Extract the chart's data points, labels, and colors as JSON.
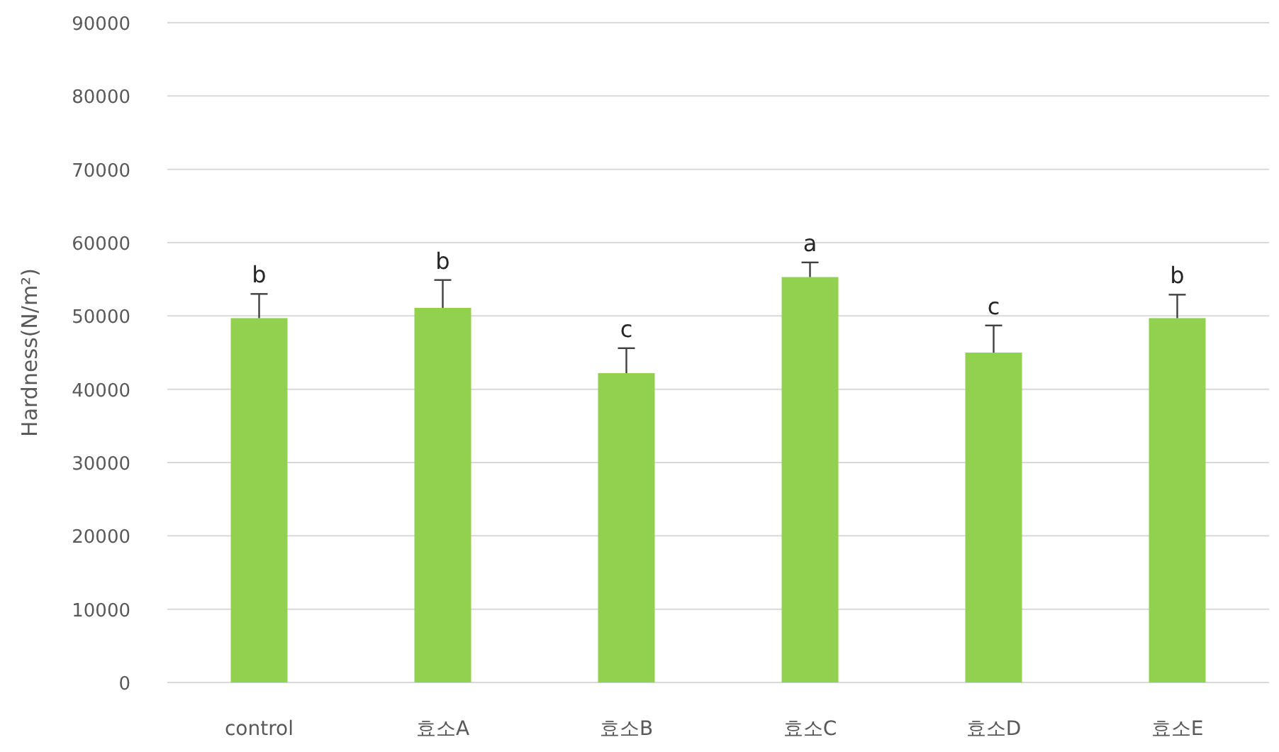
{
  "chart_data": {
    "type": "bar",
    "ylabel": "Hardness(N/m²)",
    "categories": [
      "control",
      "효소A",
      "효소B",
      "효소C",
      "효소D",
      "효소E"
    ],
    "values": [
      49700,
      51100,
      42200,
      55300,
      45000,
      49700
    ],
    "errors": [
      [
        49700,
        53000
      ],
      [
        51100,
        54900
      ],
      [
        42200,
        45600
      ],
      [
        55300,
        57300
      ],
      [
        45000,
        48700
      ],
      [
        49700,
        52900
      ]
    ],
    "color": "#92d050",
    "ylim": [
      0,
      90000
    ],
    "yticks": [
      0,
      10000,
      20000,
      30000,
      40000,
      50000,
      60000,
      70000,
      80000,
      90000
    ],
    "grid": "y",
    "annotations": [
      {
        "text": "b",
        "x": "control",
        "y": 49700
      },
      {
        "text": "b",
        "x": "효소A",
        "y": 51100
      },
      {
        "text": "c",
        "x": "효소B",
        "y": 42200
      },
      {
        "text": "a",
        "x": "효소C",
        "y": 55300
      },
      {
        "text": "c",
        "x": "효소D",
        "y": 45000
      },
      {
        "text": "b",
        "x": "효소E",
        "y": 49700
      }
    ]
  }
}
